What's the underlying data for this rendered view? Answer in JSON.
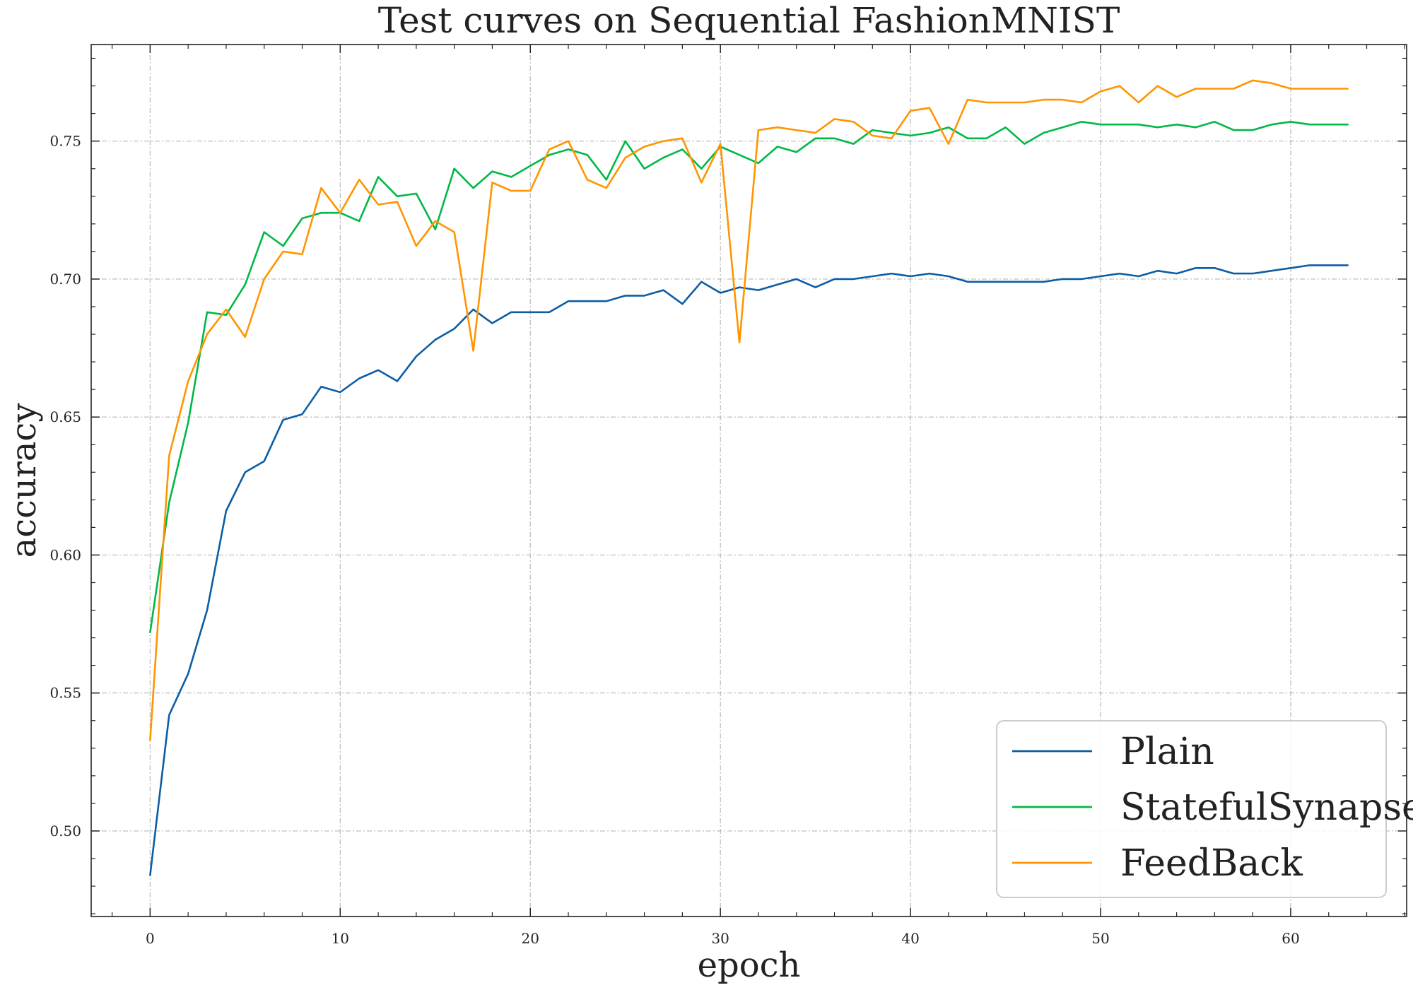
{
  "chart_data": {
    "type": "line",
    "title": "Test curves on Sequential FashionMNIST",
    "xlabel": "epoch",
    "ylabel": "accuracy",
    "xlim": [
      -3.1,
      66.1
    ],
    "ylim": [
      0.469,
      0.785
    ],
    "xticks": [
      0,
      10,
      20,
      30,
      40,
      50,
      60
    ],
    "yticks": [
      0.5,
      0.55,
      0.6,
      0.65,
      0.7,
      0.75
    ],
    "x_tick_labels": [
      "0",
      "10",
      "20",
      "30",
      "40",
      "50",
      "60"
    ],
    "y_tick_labels": [
      "0.50",
      "0.55",
      "0.60",
      "0.65",
      "0.70",
      "0.75"
    ],
    "grid": true,
    "legend_position": "lower-right",
    "x": [
      0,
      1,
      2,
      3,
      4,
      5,
      6,
      7,
      8,
      9,
      10,
      11,
      12,
      13,
      14,
      15,
      16,
      17,
      18,
      19,
      20,
      21,
      22,
      23,
      24,
      25,
      26,
      27,
      28,
      29,
      30,
      31,
      32,
      33,
      34,
      35,
      36,
      37,
      38,
      39,
      40,
      41,
      42,
      43,
      44,
      45,
      46,
      47,
      48,
      49,
      50,
      51,
      52,
      53,
      54,
      55,
      56,
      57,
      58,
      59,
      60,
      61,
      62,
      63
    ],
    "series": [
      {
        "name": "Plain",
        "color": "#0c5da5",
        "values": [
          0.484,
          0.542,
          0.557,
          0.58,
          0.616,
          0.63,
          0.634,
          0.649,
          0.651,
          0.661,
          0.659,
          0.664,
          0.667,
          0.663,
          0.672,
          0.678,
          0.682,
          0.689,
          0.684,
          0.688,
          0.688,
          0.688,
          0.692,
          0.692,
          0.692,
          0.694,
          0.694,
          0.696,
          0.691,
          0.699,
          0.695,
          0.697,
          0.696,
          0.698,
          0.7,
          0.697,
          0.7,
          0.7,
          0.701,
          0.702,
          0.701,
          0.702,
          0.701,
          0.699,
          0.699,
          0.699,
          0.699,
          0.699,
          0.7,
          0.7,
          0.701,
          0.702,
          0.701,
          0.703,
          0.702,
          0.704,
          0.704,
          0.702,
          0.702,
          0.703,
          0.704,
          0.705,
          0.705,
          0.705
        ]
      },
      {
        "name": "StatefulSynapse",
        "color": "#00b945",
        "values": [
          0.572,
          0.619,
          0.648,
          0.688,
          0.687,
          0.698,
          0.717,
          0.712,
          0.722,
          0.724,
          0.724,
          0.721,
          0.737,
          0.73,
          0.731,
          0.718,
          0.74,
          0.733,
          0.739,
          0.737,
          0.741,
          0.745,
          0.747,
          0.745,
          0.736,
          0.75,
          0.74,
          0.744,
          0.747,
          0.74,
          0.748,
          0.745,
          0.742,
          0.748,
          0.746,
          0.751,
          0.751,
          0.749,
          0.754,
          0.753,
          0.752,
          0.753,
          0.755,
          0.751,
          0.751,
          0.755,
          0.749,
          0.753,
          0.755,
          0.757,
          0.756,
          0.756,
          0.756,
          0.755,
          0.756,
          0.755,
          0.757,
          0.754,
          0.754,
          0.756,
          0.757,
          0.756,
          0.756,
          0.756
        ]
      },
      {
        "name": "FeedBack",
        "color": "#ff9500",
        "values": [
          0.533,
          0.636,
          0.663,
          0.68,
          0.689,
          0.679,
          0.7,
          0.71,
          0.709,
          0.733,
          0.724,
          0.736,
          0.727,
          0.728,
          0.712,
          0.721,
          0.717,
          0.674,
          0.735,
          0.732,
          0.732,
          0.747,
          0.75,
          0.736,
          0.733,
          0.744,
          0.748,
          0.75,
          0.751,
          0.735,
          0.749,
          0.677,
          0.754,
          0.755,
          0.754,
          0.753,
          0.758,
          0.757,
          0.752,
          0.751,
          0.761,
          0.762,
          0.749,
          0.765,
          0.764,
          0.764,
          0.764,
          0.765,
          0.765,
          0.764,
          0.768,
          0.77,
          0.764,
          0.77,
          0.766,
          0.769,
          0.769,
          0.769,
          0.772,
          0.771,
          0.769,
          0.769,
          0.769,
          0.769
        ]
      }
    ]
  }
}
